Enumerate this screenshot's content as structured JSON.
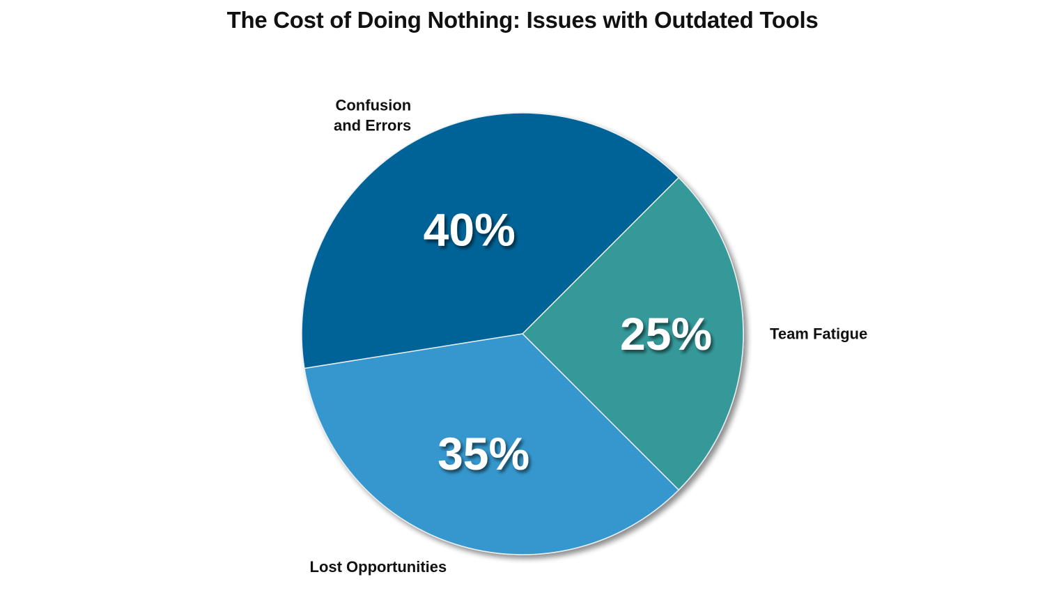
{
  "chart_data": {
    "type": "pie",
    "title": "The Cost of Doing Nothing: Issues with Outdated Tools",
    "slices": [
      {
        "label": "Team Fatigue",
        "value": 25,
        "display": "25%",
        "color": "#35999a"
      },
      {
        "label": "Lost Opportunities",
        "value": 35,
        "display": "35%",
        "color": "#3597cd"
      },
      {
        "label": "Confusion and Errors",
        "label_lines": [
          "Confusion",
          "and Errors"
        ],
        "value": 40,
        "display": "40%",
        "color": "#036497"
      }
    ]
  }
}
